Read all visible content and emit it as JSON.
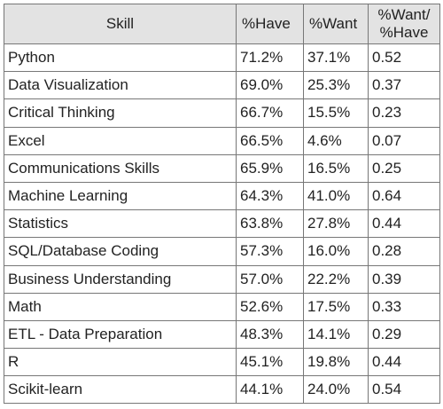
{
  "table": {
    "headers": {
      "skill": "Skill",
      "have": "%Have",
      "want": "%Want",
      "ratio_line1": "%Want/",
      "ratio_line2": "%Have"
    },
    "rows": [
      {
        "skill": "Python",
        "have": "71.2%",
        "want": "37.1%",
        "ratio": "0.52"
      },
      {
        "skill": "Data Visualization",
        "have": "69.0%",
        "want": "25.3%",
        "ratio": "0.37"
      },
      {
        "skill": "Critical Thinking",
        "have": "66.7%",
        "want": "15.5%",
        "ratio": "0.23"
      },
      {
        "skill": "Excel",
        "have": "66.5%",
        "want": "4.6%",
        "ratio": "0.07"
      },
      {
        "skill": "Communications Skills",
        "have": "65.9%",
        "want": "16.5%",
        "ratio": "0.25"
      },
      {
        "skill": "Machine Learning",
        "have": "64.3%",
        "want": "41.0%",
        "ratio": "0.64"
      },
      {
        "skill": "Statistics",
        "have": "63.8%",
        "want": "27.8%",
        "ratio": "0.44"
      },
      {
        "skill": "SQL/Database Coding",
        "have": "57.3%",
        "want": "16.0%",
        "ratio": "0.28"
      },
      {
        "skill": "Business Understanding",
        "have": "57.0%",
        "want": "22.2%",
        "ratio": "0.39"
      },
      {
        "skill": "Math",
        "have": "52.6%",
        "want": "17.5%",
        "ratio": "0.33"
      },
      {
        "skill": "ETL - Data Preparation",
        "have": "48.3%",
        "want": "14.1%",
        "ratio": "0.29"
      },
      {
        "skill": "R",
        "have": "45.1%",
        "want": "19.8%",
        "ratio": "0.44"
      },
      {
        "skill": "Scikit-learn",
        "have": "44.1%",
        "want": "24.0%",
        "ratio": "0.54"
      }
    ]
  }
}
